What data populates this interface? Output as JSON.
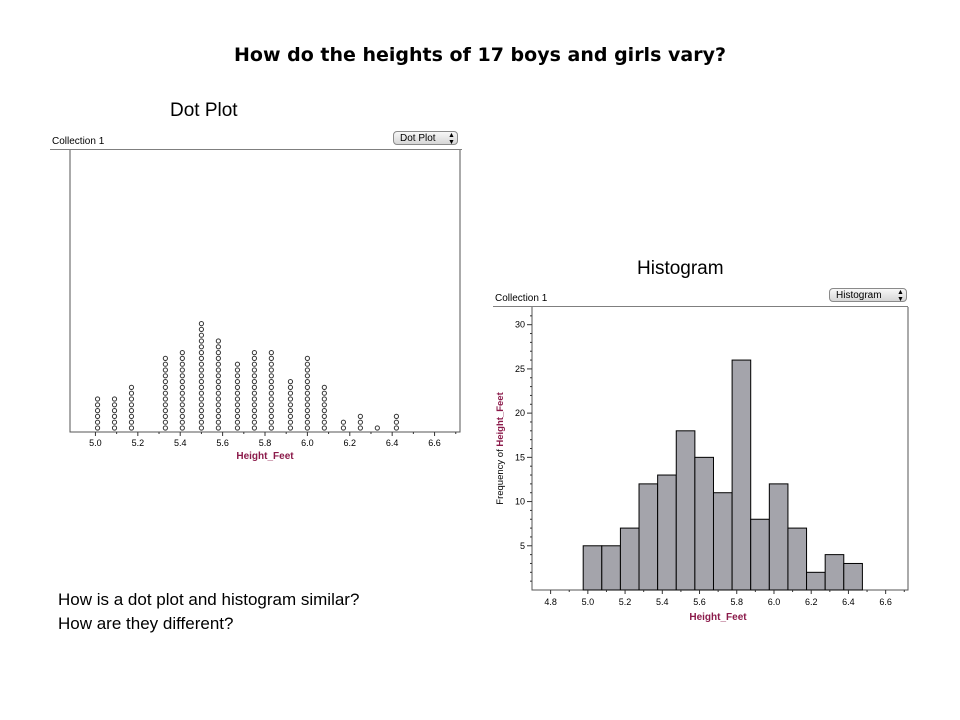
{
  "title": "How do the heights of 17 boys and girls vary?",
  "dot_plot": {
    "caption": "Dot Plot",
    "collection": "Collection 1",
    "selector": "Dot Plot"
  },
  "histogram": {
    "caption": "Histogram",
    "collection": "Collection 1",
    "selector": "Histogram"
  },
  "questions": [
    "How is a dot plot and histogram similar?",
    "How are they different?"
  ],
  "colors": {
    "axis_label": "#8b1a4a",
    "bar_fill": "#a4a4ab",
    "bar_stroke": "#000000",
    "dot_stroke": "#333333"
  },
  "chart_data": [
    {
      "type": "scatter",
      "subtype": "dot plot",
      "xlabel": "Height_Feet",
      "ylabel": "",
      "xlim": [
        4.88,
        6.72
      ],
      "x_ticks": [
        "5.0",
        "5.2",
        "5.4",
        "5.6",
        "5.8",
        "6.0",
        "6.2",
        "6.4",
        "6.6"
      ],
      "x_tick_values": [
        5.0,
        5.2,
        5.4,
        5.6,
        5.8,
        6.0,
        6.2,
        6.4,
        6.6
      ],
      "stacks": [
        {
          "x": 5.01,
          "count": 6
        },
        {
          "x": 5.09,
          "count": 6
        },
        {
          "x": 5.17,
          "count": 8
        },
        {
          "x": 5.33,
          "count": 13
        },
        {
          "x": 5.41,
          "count": 14
        },
        {
          "x": 5.5,
          "count": 19
        },
        {
          "x": 5.58,
          "count": 16
        },
        {
          "x": 5.67,
          "count": 12
        },
        {
          "x": 5.75,
          "count": 14
        },
        {
          "x": 5.83,
          "count": 14
        },
        {
          "x": 5.92,
          "count": 9
        },
        {
          "x": 6.0,
          "count": 13
        },
        {
          "x": 6.08,
          "count": 8
        },
        {
          "x": 6.17,
          "count": 2
        },
        {
          "x": 6.25,
          "count": 3
        },
        {
          "x": 6.33,
          "count": 1
        },
        {
          "x": 6.42,
          "count": 3
        }
      ],
      "grid": false
    },
    {
      "type": "bar",
      "subtype": "histogram",
      "xlabel": "Height_Feet",
      "ylabel": "Frequency of Height_Feet",
      "xlim": [
        4.7,
        6.72
      ],
      "ylim": [
        0,
        32
      ],
      "x_ticks": [
        "4.8",
        "5.0",
        "5.2",
        "5.4",
        "5.6",
        "5.8",
        "6.0",
        "6.2",
        "6.4",
        "6.6"
      ],
      "x_tick_values": [
        4.8,
        5.0,
        5.2,
        5.4,
        5.6,
        5.8,
        6.0,
        6.2,
        6.4,
        6.6
      ],
      "y_ticks": [
        "5",
        "10",
        "15",
        "20",
        "25",
        "30"
      ],
      "y_tick_values": [
        5,
        10,
        15,
        20,
        25,
        30
      ],
      "bin_start": 4.975,
      "bin_width": 0.1,
      "values": [
        5,
        5,
        7,
        12,
        13,
        18,
        15,
        11,
        26,
        8,
        12,
        7,
        2,
        4,
        3
      ],
      "grid": false
    }
  ]
}
